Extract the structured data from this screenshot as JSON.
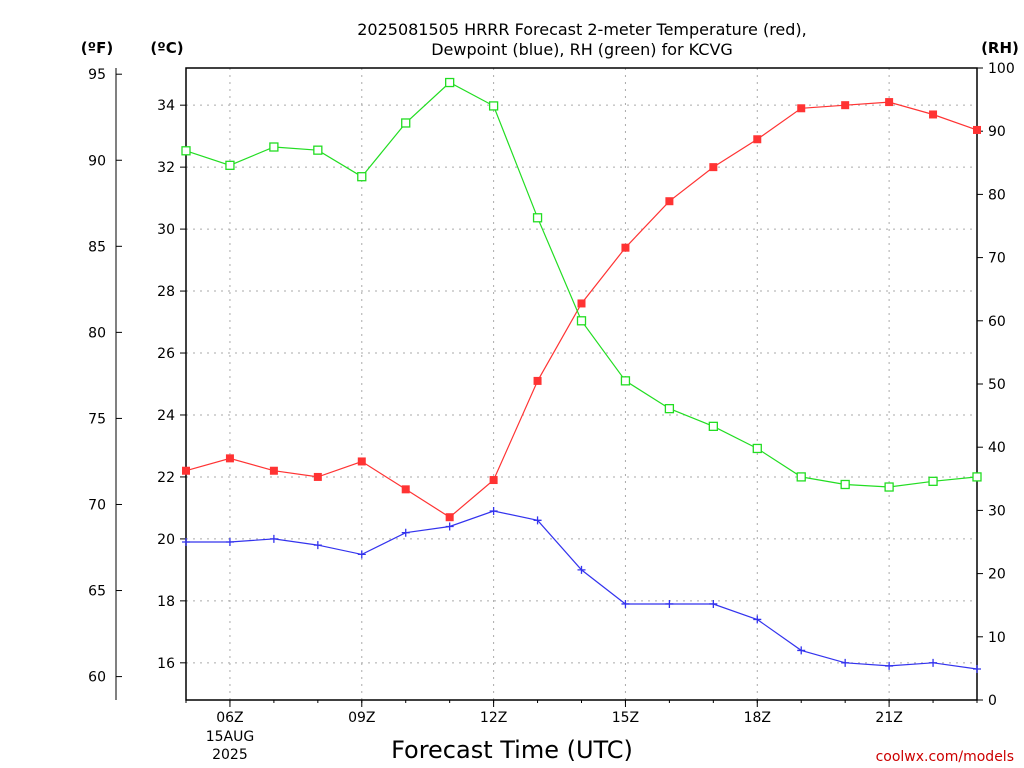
{
  "chart_data": {
    "type": "line",
    "title_line1": "2025081505 HRRR Forecast 2-meter Temperature (red),",
    "title_line2": "Dewpoint (blue), RH (green) for KCVG",
    "xlabel": "Forecast Time (UTC)",
    "credit": "coolwx.com/models",
    "units": {
      "fahrenheit": "(ºF)",
      "celsius": "(ºC)",
      "rh": "(RH)"
    },
    "x_hours": [
      5,
      6,
      7,
      8,
      9,
      10,
      11,
      12,
      13,
      14,
      15,
      16,
      17,
      18,
      19,
      20,
      21,
      22,
      23
    ],
    "xlim": [
      5,
      23
    ],
    "x_ticks": [
      {
        "hour": 6,
        "label": "06Z",
        "date": "15AUG",
        "year": "2025"
      },
      {
        "hour": 9,
        "label": "09Z"
      },
      {
        "hour": 12,
        "label": "12Z"
      },
      {
        "hour": 15,
        "label": "15Z"
      },
      {
        "hour": 18,
        "label": "18Z"
      },
      {
        "hour": 21,
        "label": "21Z"
      }
    ],
    "celsius_axis": {
      "ylim": [
        14.8,
        35.2
      ],
      "ticks": [
        "16",
        "18",
        "20",
        "22",
        "24",
        "26",
        "28",
        "30",
        "32",
        "34"
      ]
    },
    "fahrenheit_axis": {
      "ylim": [
        58.64,
        95.36
      ],
      "ticks": [
        "60",
        "65",
        "70",
        "75",
        "80",
        "85",
        "90",
        "95"
      ]
    },
    "rh_axis": {
      "ylim": [
        0,
        100
      ],
      "ticks": [
        "0",
        "10",
        "20",
        "30",
        "40",
        "50",
        "60",
        "70",
        "80",
        "90",
        "100"
      ]
    },
    "grid": true,
    "series": [
      {
        "key": "temperature",
        "color": "#ff3333",
        "marker": "filled-square",
        "axis": "celsius",
        "values": [
          22.2,
          22.6,
          22.2,
          22.0,
          22.5,
          21.6,
          20.7,
          21.9,
          25.1,
          27.6,
          29.4,
          30.9,
          32.0,
          32.9,
          33.9,
          34.0,
          34.1,
          33.7,
          33.2
        ]
      },
      {
        "key": "dewpoint",
        "color": "#3333ee",
        "marker": "plus",
        "axis": "celsius",
        "values": [
          19.9,
          19.9,
          20.0,
          19.8,
          19.5,
          20.2,
          20.4,
          20.9,
          20.6,
          19.0,
          17.9,
          17.9,
          17.9,
          17.4,
          16.4,
          16.0,
          15.9,
          16.0,
          15.8
        ]
      },
      {
        "key": "rh",
        "color": "#22dd22",
        "marker": "open-square",
        "axis": "rh",
        "values": [
          86.9,
          84.6,
          87.5,
          87.0,
          82.8,
          91.3,
          97.7,
          94.0,
          76.3,
          60.0,
          50.5,
          46.1,
          43.3,
          39.8,
          35.3,
          34.1,
          33.7,
          34.6,
          35.3
        ]
      }
    ]
  }
}
